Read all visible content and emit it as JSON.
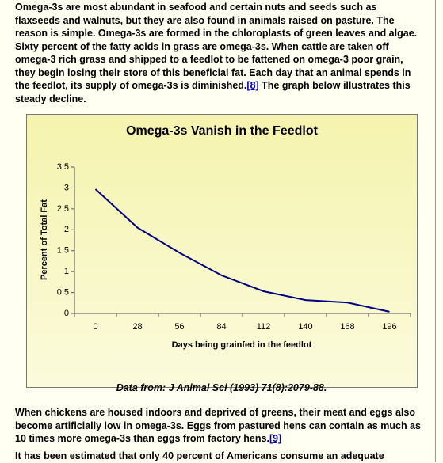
{
  "paragraphs": [
    {
      "text": "Omega-3s are most abundant in seafood and certain nuts and seeds such as flaxseeds and walnuts, but they are also found in animals raised on pasture. The reason is simple. Omega-3s are formed in the chloroplasts of green leaves and algae. Sixty percent of the fatty acids in grass are omega-3s. When cattle are taken off omega-3 rich grass and shipped to a feedlot to be fattened on omega-3 poor grain, they begin losing their store of this beneficial fat. Each day that an animal spends in the feedlot, its supply of omega-3s is diminished.",
      "link": "[8]",
      "after": " The graph below illustrates this steady decline."
    },
    {
      "text": "When chickens are housed indoors and deprived of greens, their meat and eggs also become artificially low in omega-3s. Eggs from pastured hens can contain as much as 10 times more omega-3s than eggs from factory hens.",
      "link": "[9]"
    },
    {
      "text": "It has been estimated that only 40 percent of Americans consume an adequate"
    }
  ],
  "caption": "Data from: J Animal Sci (1993) 71(8):2079-88.",
  "chart_data": {
    "type": "line",
    "title": "Omega-3s Vanish in the Feedlot",
    "x_label": "Days being grainfed in the feedlot",
    "y_label": "Percent of Total Fat",
    "categories": [
      "0",
      "28",
      "56",
      "84",
      "112",
      "140",
      "168",
      "196"
    ],
    "values": [
      2.97,
      2.05,
      1.45,
      0.91,
      0.53,
      0.32,
      0.26,
      0.04
    ],
    "color": "#000080",
    "ylim": [
      0,
      3.5
    ],
    "yticks": [
      0,
      0.5,
      1,
      1.5,
      2,
      2.5,
      3,
      3.5
    ]
  }
}
